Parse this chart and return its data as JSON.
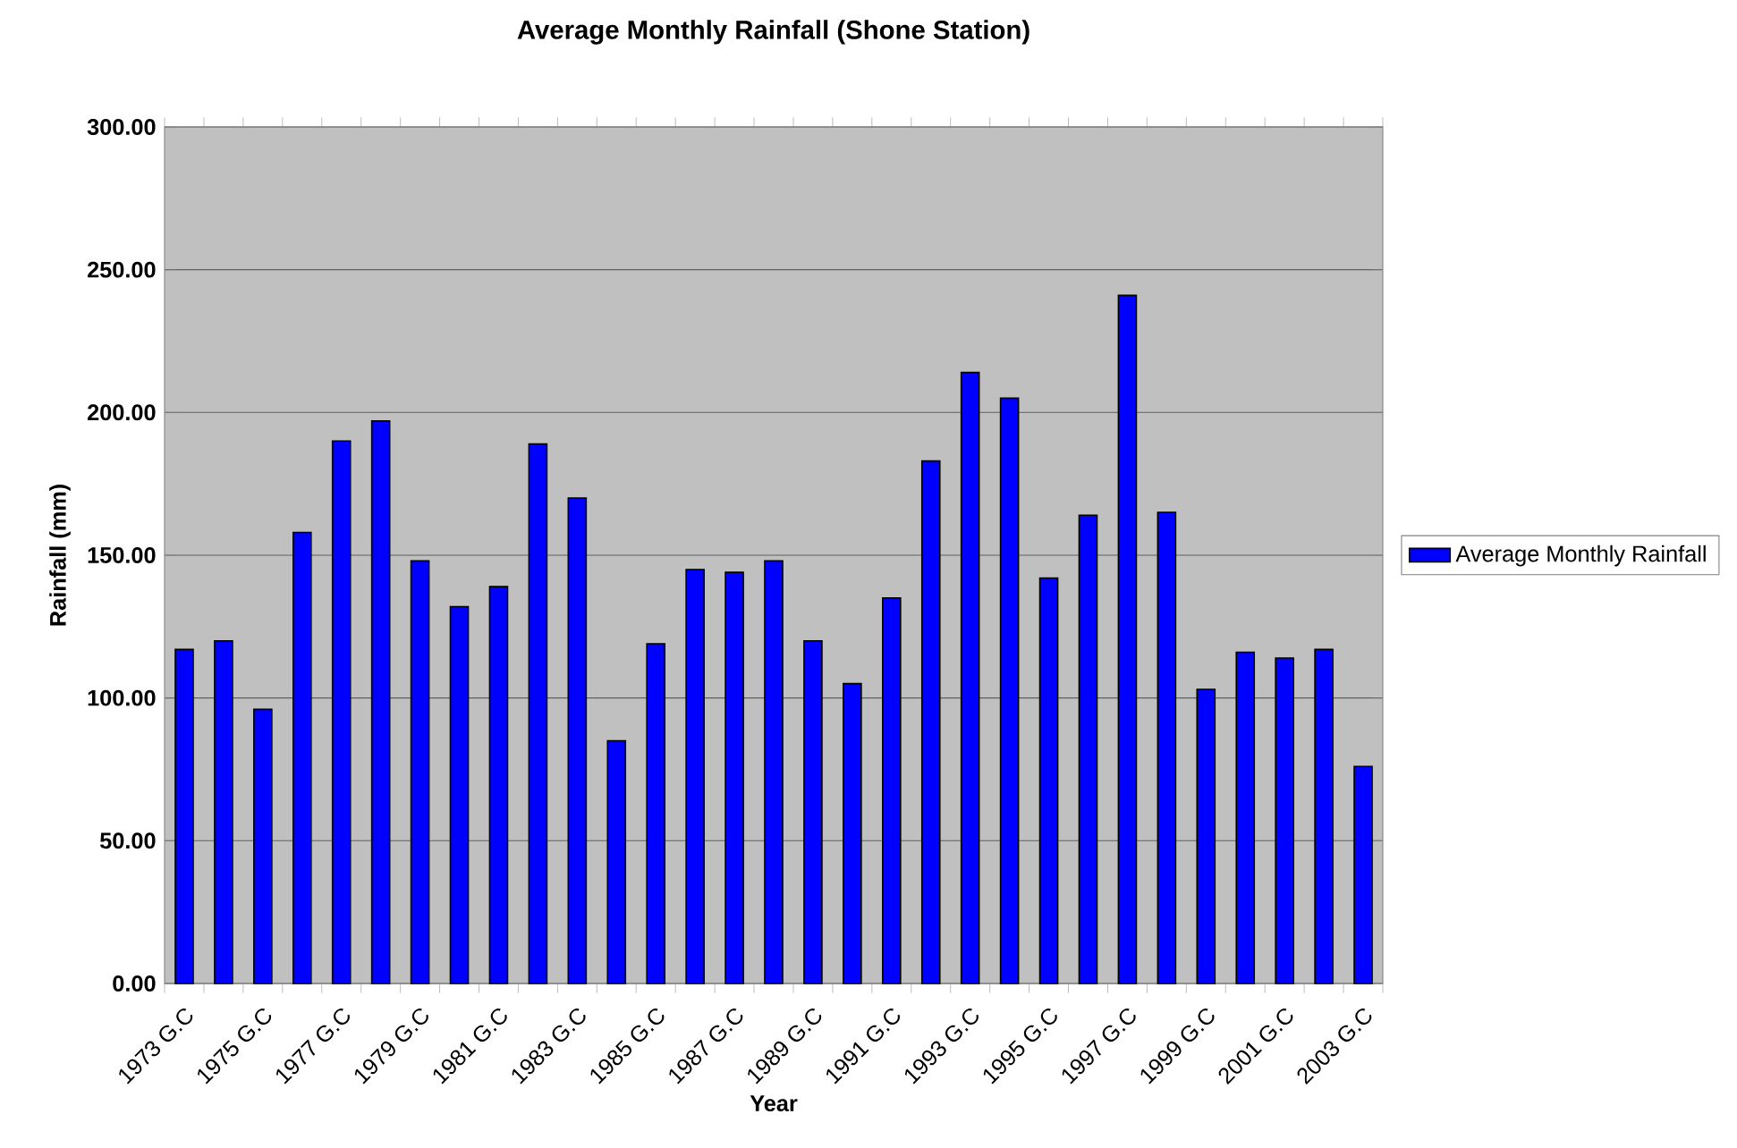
{
  "chart_data": {
    "type": "bar",
    "title": "Average Monthly Rainfall (Shone Station)",
    "xlabel": "Year",
    "ylabel": "Rainfall (mm)",
    "categories": [
      "1973 G.C",
      null,
      "1975 G.C",
      null,
      "1977 G.C",
      null,
      "1979 G.C",
      null,
      "1981 G.C",
      null,
      "1983 G.C",
      null,
      "1985 G.C",
      null,
      "1987 G.C",
      null,
      "1989 G.C",
      null,
      "1991 G.C",
      null,
      "1993 G.C",
      null,
      "1995 G.C",
      null,
      "1997 G.C",
      null,
      "1999 G.C",
      null,
      "2001 G.C",
      null,
      "2003 G.C"
    ],
    "series": [
      {
        "name": "Average Monthly Rainfall",
        "color": "#0000ff",
        "values": [
          117,
          120,
          96,
          158,
          190,
          197,
          148,
          132,
          139,
          189,
          170,
          85,
          119,
          145,
          144,
          148,
          120,
          105,
          135,
          183,
          214,
          205,
          142,
          164,
          241,
          165,
          103,
          116,
          114,
          117,
          76
        ]
      }
    ],
    "ylim": [
      0,
      300
    ],
    "yticks": [
      {
        "value": 0,
        "label": "0.00"
      },
      {
        "value": 50,
        "label": "50.00"
      },
      {
        "value": 100,
        "label": "100.00"
      },
      {
        "value": 150,
        "label": "150.00"
      },
      {
        "value": 200,
        "label": "200.00"
      },
      {
        "value": 250,
        "label": "250.00"
      },
      {
        "value": 300,
        "label": "300.00"
      }
    ],
    "grid": "y",
    "legend": "right"
  }
}
